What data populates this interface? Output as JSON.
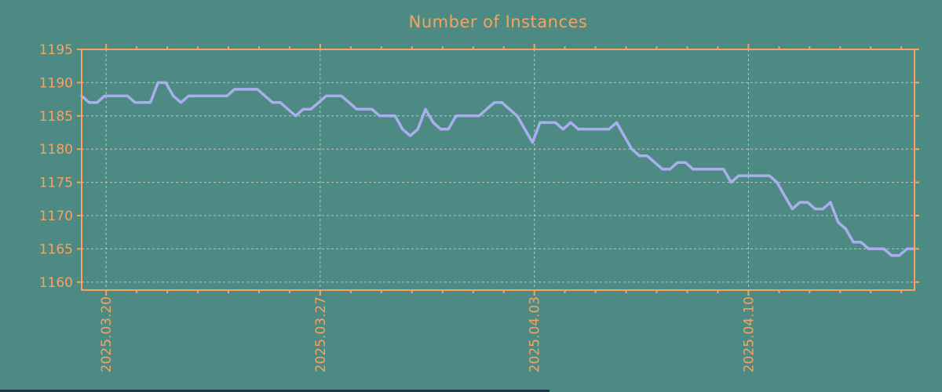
{
  "title": "Number of Instances",
  "colors": {
    "background": "#4d8a83",
    "accent_orange": "#f4a460",
    "line_purple": "#a9aeef",
    "grid_gray": "#ccd6d3",
    "bottom_bar_dark": "#243245"
  },
  "chart_data": {
    "type": "line",
    "title": "Number of Instances",
    "xlabel": "",
    "ylabel": "",
    "grid": true,
    "legend": null,
    "ylim": [
      1158.8,
      1195
    ],
    "yticks": [
      1160,
      1165,
      1170,
      1175,
      1180,
      1185,
      1190,
      1195
    ],
    "x_span_days": 27.23,
    "x_major_ticks": [
      {
        "day": 0.8,
        "label": "2025.03.20"
      },
      {
        "day": 7.8,
        "label": "2025.03.27"
      },
      {
        "day": 14.8,
        "label": "2025.04.03"
      },
      {
        "day": 21.8,
        "label": "2025.04.10"
      }
    ],
    "x_minor_tick_first_day": 0.8,
    "x_minor_tick_every_days": 1,
    "sample_interval_hours": 6,
    "values": [
      1188,
      1187,
      1187,
      1188,
      1188,
      1188,
      1188,
      1187,
      1187,
      1187,
      1190,
      1190,
      1188,
      1187,
      1188,
      1188,
      1188,
      1188,
      1188,
      1188,
      1189,
      1189,
      1189,
      1189,
      1188,
      1187,
      1187,
      1186,
      1185,
      1186,
      1186,
      1187,
      1188,
      1188,
      1188,
      1187,
      1186,
      1186,
      1186,
      1185,
      1185,
      1185,
      1183,
      1182,
      1183,
      1186,
      1184,
      1183,
      1183,
      1185,
      1185,
      1185,
      1185,
      1186,
      1187,
      1187,
      1186,
      1185,
      1183,
      1181,
      1184,
      1184,
      1184,
      1183,
      1184,
      1183,
      1183,
      1183,
      1183,
      1183,
      1184,
      1182,
      1180,
      1179,
      1179,
      1178,
      1177,
      1177,
      1178,
      1178,
      1177,
      1177,
      1177,
      1177,
      1177,
      1175,
      1176,
      1176,
      1176,
      1176,
      1176,
      1175,
      1173,
      1171,
      1172,
      1172,
      1171,
      1171,
      1172,
      1169,
      1168,
      1166,
      1166,
      1165,
      1165,
      1165,
      1164,
      1164,
      1165,
      1165
    ]
  }
}
